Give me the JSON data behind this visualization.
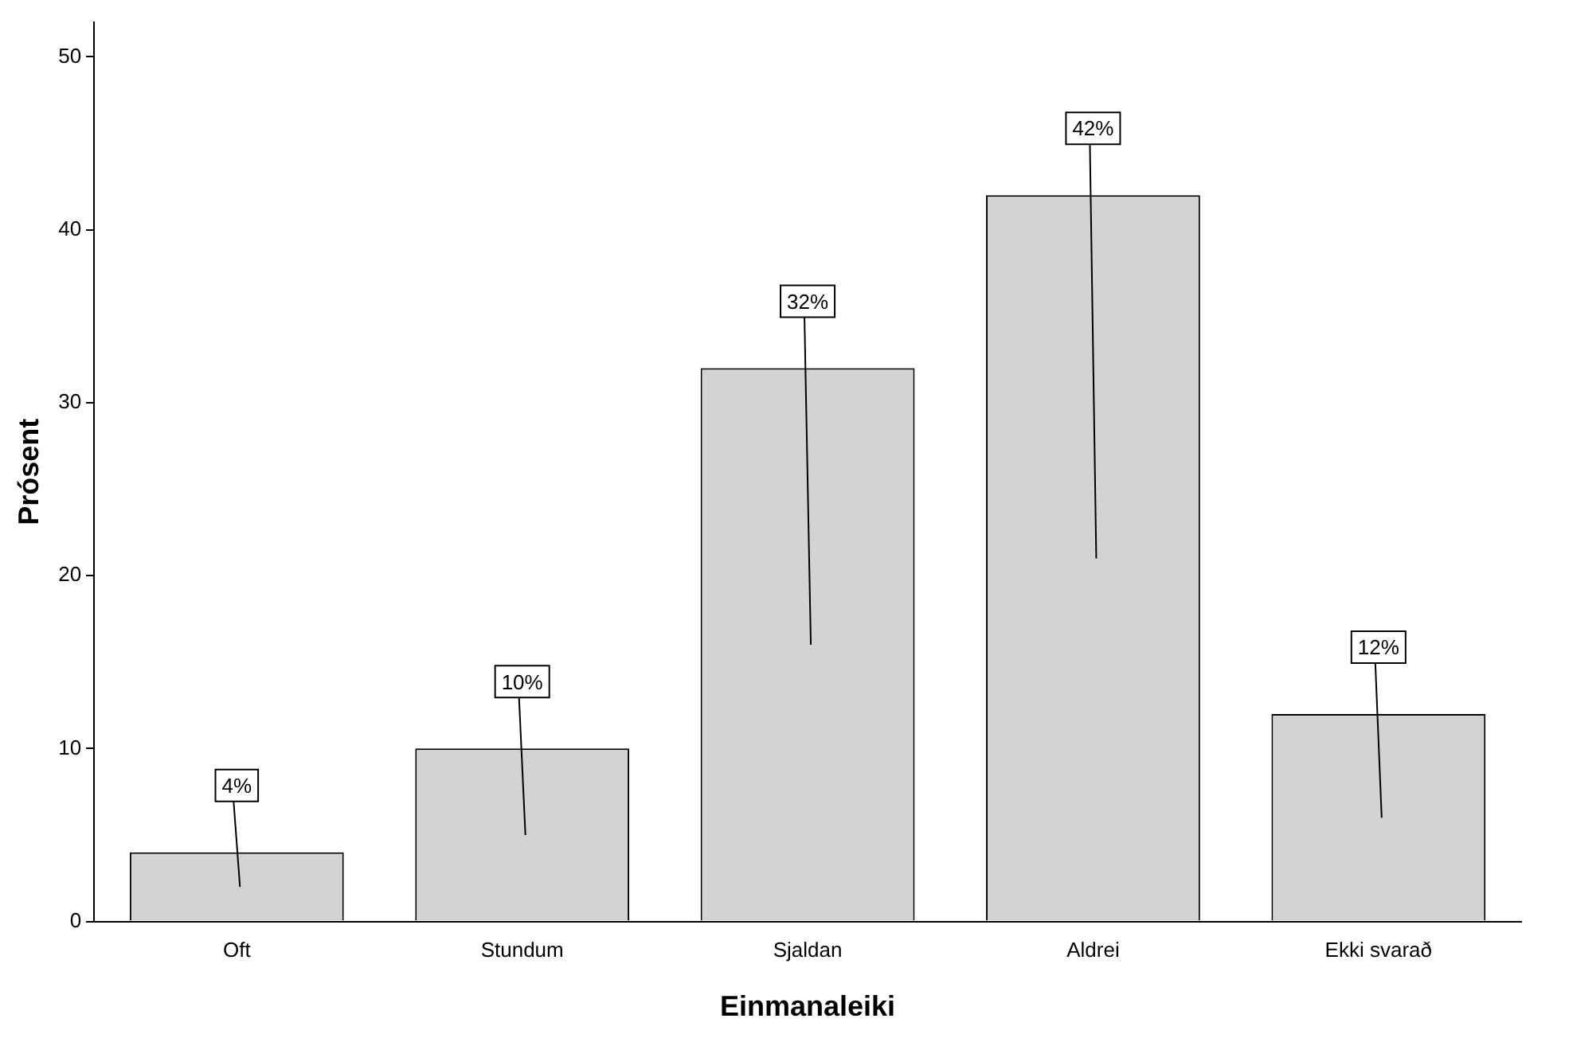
{
  "chart_data": {
    "type": "bar",
    "xlabel": "Einmanaleiki",
    "ylabel": "Prósent",
    "categories": [
      "Oft",
      "Stundum",
      "Sjaldan",
      "Aldrei",
      "Ekki svarað"
    ],
    "values": [
      4,
      10,
      32,
      42,
      12
    ],
    "value_labels": [
      "4%",
      "10%",
      "32%",
      "42%",
      "12%"
    ],
    "color": "#d3d3d3",
    "ylim": [
      0,
      52
    ],
    "yticks": [
      0,
      10,
      20,
      30,
      40,
      50
    ],
    "grid": false,
    "legend": false
  }
}
